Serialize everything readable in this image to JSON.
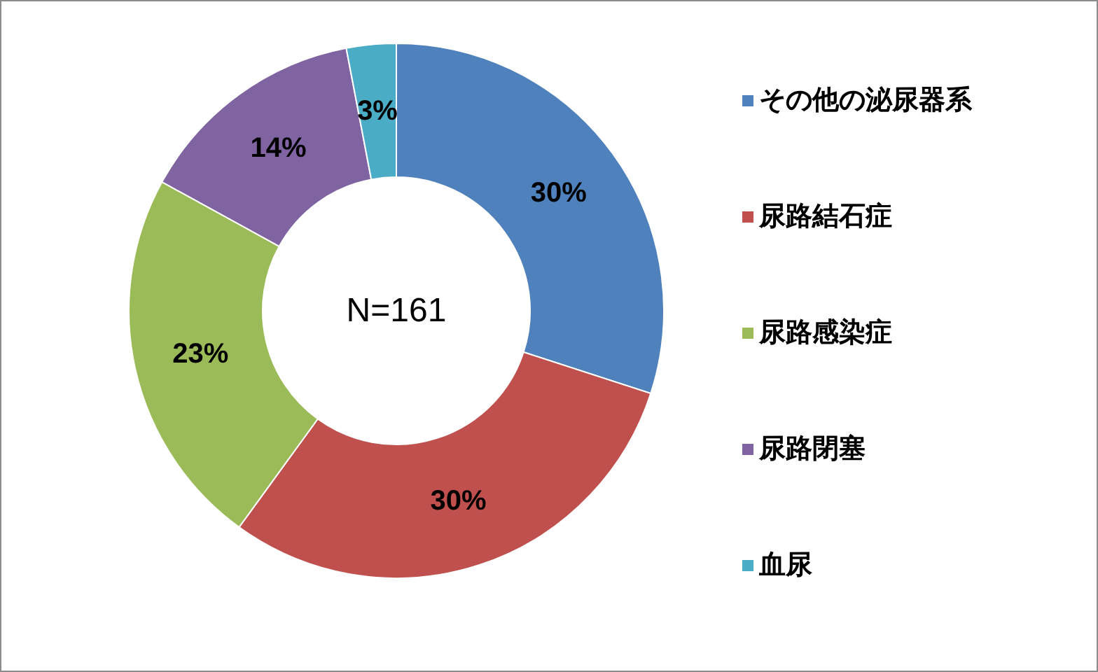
{
  "chart_data": {
    "type": "donut",
    "categories": [
      "その他の泌尿器系",
      "尿路結石症",
      "尿路感染症",
      "尿路閉塞",
      "血尿"
    ],
    "values": [
      30,
      30,
      23,
      14,
      3
    ],
    "value_labels": [
      "30%",
      "30%",
      "23%",
      "14%",
      "3%"
    ],
    "colors": [
      "#4f81bd",
      "#c0504d",
      "#9bbb59",
      "#8064a2",
      "#4bacc6"
    ],
    "legend": "right",
    "annotations": [
      "N=161"
    ]
  }
}
